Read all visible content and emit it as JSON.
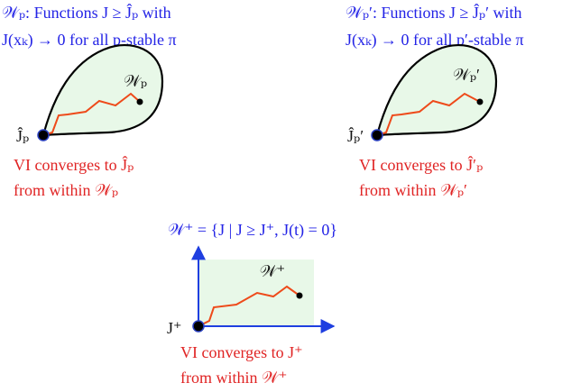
{
  "panels": [
    {
      "heading": [
        "𝒲ₚ: Functions J ≥ Ĵₚ with",
        "J(xₖ) → 0 for all p-stable π"
      ],
      "region_label": "𝒲ₚ",
      "point_label": "Ĵₚ",
      "caption": [
        "VI converges to Ĵₚ",
        "from within 𝒲ₚ"
      ]
    },
    {
      "heading": [
        "𝒲ₚ′: Functions J ≥ Ĵₚ′ with",
        "J(xₖ) → 0 for all p′-stable π"
      ],
      "region_label": "𝒲ₚ′",
      "point_label": "Ĵₚ′",
      "caption": [
        "VI converges to Ĵ′ₚ",
        "from within 𝒲ₚ′"
      ]
    },
    {
      "heading": [
        "𝒲⁺ = {J | J ≥ J⁺,  J(t) = 0}"
      ],
      "region_label": "𝒲⁺",
      "point_label": "J⁺",
      "caption": [
        "VI converges to J⁺",
        "from within 𝒲⁺"
      ]
    }
  ]
}
